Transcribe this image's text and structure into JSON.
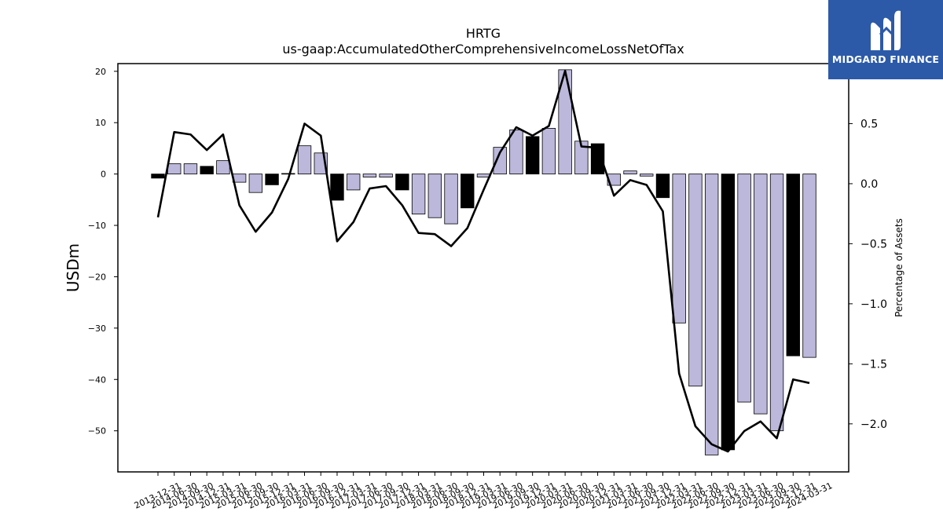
{
  "brand": {
    "name": "MIDGARD FINANCE",
    "logo_icon": "midgard-m-logo-icon"
  },
  "chart_data": {
    "type": "bar",
    "title": "HRTG",
    "subtitle": "us-gaap:AccumulatedOtherComprehensiveIncomeLossNetOfTax",
    "ylabel": "USDm",
    "y2label": "Percentage of Assets",
    "ylim": [
      -58,
      21.5
    ],
    "y2lim": [
      -2.4,
      1.0
    ],
    "yticks": [
      20,
      10,
      0,
      -10,
      -20,
      -30,
      -40,
      -50
    ],
    "y2ticks": [
      0.5,
      0.0,
      -0.5,
      -1.0,
      -1.5,
      -2.0
    ],
    "grid": false,
    "colors": {
      "bar": "#bcb8db",
      "bar_highlight": "#000000",
      "line": "#000000"
    },
    "categories": [
      "2013-12-31",
      "2014-06-30",
      "2014-09-30",
      "2014-12-31",
      "2015-03-31",
      "2015-06-30",
      "2015-09-30",
      "2015-12-31",
      "2016-03-31",
      "2016-06-30",
      "2016-09-30",
      "2016-12-31",
      "2017-03-31",
      "2017-06-30",
      "2017-09-30",
      "2017-12-31",
      "2018-03-31",
      "2018-06-30",
      "2018-09-30",
      "2018-12-31",
      "2019-03-31",
      "2019-06-30",
      "2019-09-30",
      "2019-12-31",
      "2020-03-31",
      "2020-06-30",
      "2020-09-30",
      "2020-12-31",
      "2021-03-31",
      "2021-06-30",
      "2021-09-30",
      "2021-12-31",
      "2022-03-31",
      "2022-06-30",
      "2022-09-30",
      "2022-12-31",
      "2023-03-31",
      "2023-06-30",
      "2023-09-30",
      "2023-12-31",
      "2024-03-31"
    ],
    "series": [
      {
        "type": "bar",
        "axis": "left",
        "values": [
          -0.8,
          2.0,
          2.0,
          1.5,
          2.6,
          -1.6,
          -3.6,
          -2.1,
          0.1,
          5.5,
          4.1,
          -5.1,
          -3.1,
          -0.6,
          -0.6,
          -3.1,
          -7.8,
          -8.5,
          -9.7,
          -6.6,
          -0.6,
          5.2,
          8.6,
          7.3,
          8.9,
          20.3,
          6.4,
          5.9,
          -2.2,
          0.6,
          -0.4,
          -4.6,
          -29.0,
          -41.3,
          -54.7,
          -53.7,
          -44.4,
          -46.7,
          -50.0,
          -35.4,
          -35.7
        ],
        "highlight": [
          true,
          false,
          false,
          true,
          false,
          false,
          false,
          true,
          false,
          false,
          false,
          true,
          false,
          false,
          false,
          true,
          false,
          false,
          false,
          true,
          false,
          false,
          false,
          true,
          false,
          false,
          false,
          true,
          false,
          false,
          false,
          true,
          false,
          false,
          false,
          true,
          false,
          false,
          false,
          true,
          false
        ]
      },
      {
        "type": "line",
        "axis": "right",
        "values": [
          -0.28,
          0.43,
          0.41,
          0.28,
          0.41,
          -0.18,
          -0.4,
          -0.24,
          0.04,
          0.5,
          0.4,
          -0.48,
          -0.32,
          -0.04,
          -0.02,
          -0.18,
          -0.41,
          -0.42,
          -0.52,
          -0.37,
          -0.05,
          0.26,
          0.47,
          0.4,
          0.48,
          0.94,
          0.31,
          0.3,
          -0.1,
          0.03,
          -0.01,
          -0.23,
          -1.58,
          -2.02,
          -2.17,
          -2.23,
          -2.06,
          -1.98,
          -2.12,
          -1.63,
          -1.66
        ]
      }
    ]
  }
}
